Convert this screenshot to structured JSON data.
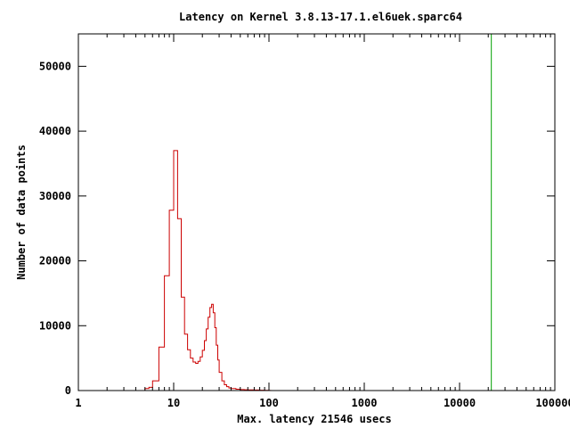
{
  "chart_data": {
    "type": "line",
    "title": "Latency on Kernel 3.8.13-17.1.el6uek.sparc64",
    "xlabel": "Max. latency 21546 usecs",
    "ylabel": "Number of data points",
    "x_scale": "log",
    "xlim": [
      1,
      100000
    ],
    "ylim": [
      0,
      55000
    ],
    "x_ticks": [
      1,
      10,
      100,
      1000,
      10000,
      100000
    ],
    "x_tick_labels": [
      "1",
      "10",
      "100",
      "1000",
      "10000",
      "100000"
    ],
    "y_ticks": [
      0,
      10000,
      20000,
      30000,
      40000,
      50000
    ],
    "y_tick_labels": [
      "0",
      "10000",
      "20000",
      "30000",
      "40000",
      "50000"
    ],
    "grid": false,
    "legend": "none",
    "series": [
      {
        "kind": "histogram-steps",
        "color": "#cc0000",
        "x": [
          5,
          5.5,
          6,
          6.5,
          7,
          7.5,
          8,
          8.5,
          9,
          9.5,
          10,
          10.5,
          11,
          12,
          13,
          14,
          15,
          16,
          17,
          18,
          19,
          20,
          21,
          22,
          23,
          24,
          25,
          26,
          27,
          28,
          29,
          30,
          32,
          34,
          36,
          38,
          40,
          45,
          50,
          55,
          60,
          70,
          80,
          90,
          100
        ],
        "values": [
          300,
          500,
          1500,
          1500,
          6700,
          6700,
          17700,
          17700,
          27800,
          27800,
          37000,
          37000,
          26500,
          14400,
          8700,
          6300,
          5000,
          4400,
          4200,
          4500,
          5200,
          6200,
          7700,
          9500,
          11300,
          12800,
          13300,
          12000,
          9700,
          7000,
          4700,
          2800,
          1500,
          900,
          600,
          400,
          300,
          200,
          150,
          120,
          100,
          80,
          60,
          40,
          20
        ]
      },
      {
        "kind": "vertical-line",
        "color": "#00a000",
        "x": 21546
      }
    ]
  }
}
